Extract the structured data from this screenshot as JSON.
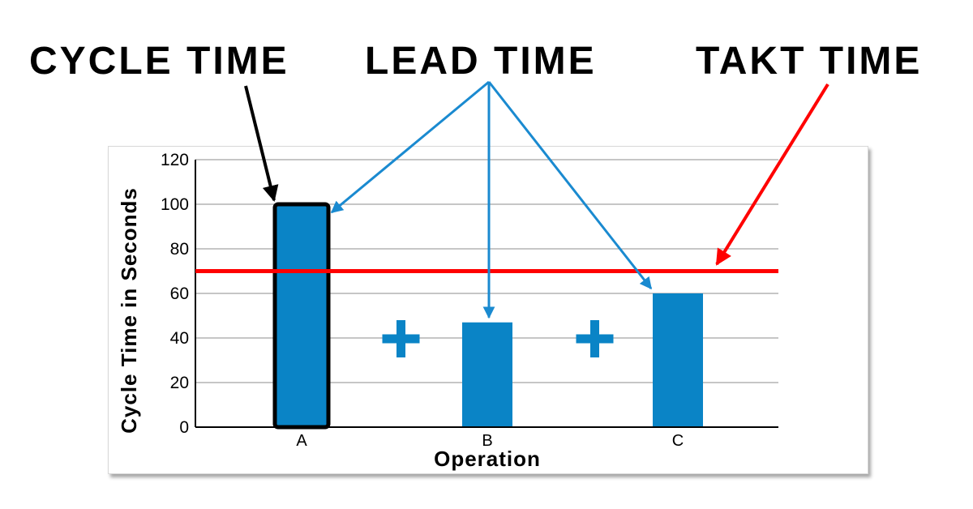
{
  "headlines": {
    "cycle_time": "CYCLE TIME",
    "lead_time": "LEAD TIME",
    "takt_time": "TAKT TIME"
  },
  "colors": {
    "bar": "#0a84c6",
    "takt_line": "#ff0000",
    "lead_arrow": "#1a8ad0",
    "cycle_arrow": "#000000",
    "plus_sign": "#0a84c6"
  },
  "icons": [
    "plus-icon",
    "plus-icon"
  ],
  "chart_data": {
    "type": "bar",
    "categories": [
      "A",
      "B",
      "C"
    ],
    "values": [
      100,
      47,
      60
    ],
    "xlabel": "Operation",
    "ylabel": "Cycle Time in Seconds",
    "ylim": [
      0,
      120
    ],
    "yticks": [
      0,
      20,
      40,
      60,
      80,
      100,
      120
    ],
    "grid": true,
    "takt_time": 70,
    "highlighted_category": "A"
  }
}
